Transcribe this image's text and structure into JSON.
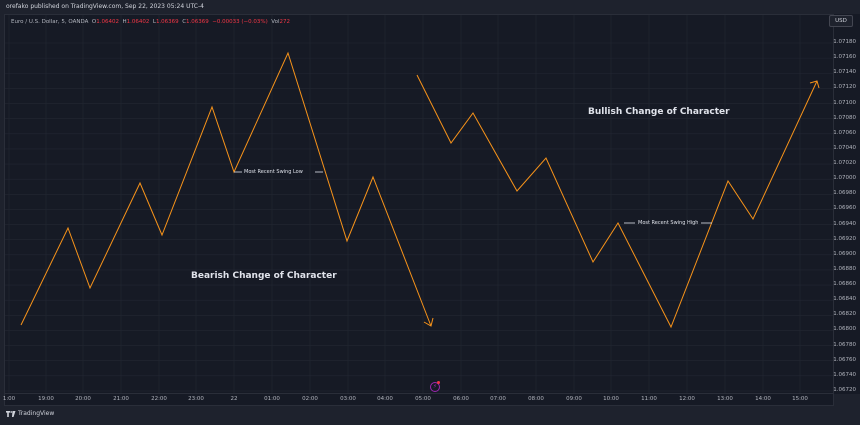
{
  "header": {
    "published_text": "orefako published on TradingView.com, Sep 22, 2023 05:24 UTC-4"
  },
  "legend": {
    "symbol": "Euro / U.S. Dollar, 5, OANDA",
    "open_label": "O",
    "open": "1.06402",
    "high_label": "H",
    "high": "1.06402",
    "low_label": "L",
    "low": "1.06369",
    "close_label": "C",
    "close": "1.06369",
    "change": "−0.00033 (−0.03%)",
    "vol_label": "Vol",
    "vol": "272"
  },
  "price_scale": {
    "currency": "USD",
    "labels": [
      "1.07180",
      "1.07160",
      "1.07140",
      "1.07120",
      "1.07100",
      "1.07080",
      "1.07060",
      "1.07040",
      "1.07020",
      "1.07000",
      "1.06980",
      "1.06960",
      "1.06940",
      "1.06920",
      "1.06900",
      "1.06880",
      "1.06860",
      "1.06840",
      "1.06820",
      "1.06800",
      "1.06780",
      "1.06760",
      "1.06740",
      "1.06720"
    ]
  },
  "time_axis": {
    "labels": [
      "1:00",
      "19:00",
      "20:00",
      "21:00",
      "22:00",
      "23:00",
      "22",
      "01:00",
      "02:00",
      "03:00",
      "04:00",
      "05:00",
      "06:00",
      "07:00",
      "08:00",
      "09:00",
      "10:00",
      "11:00",
      "12:00",
      "13:00",
      "14:00",
      "15:00"
    ]
  },
  "annotations": {
    "bearish_title": "Bearish Change of Character",
    "bullish_title": "Bullish Change of Character",
    "swing_low": "Most Recent Swing Low",
    "swing_high": "Most Recent Swing High"
  },
  "colors": {
    "line": "#f7931a",
    "background": "#161a25",
    "grid": "#232733",
    "text": "#b2b5be",
    "negative": "#f23645"
  },
  "footer": {
    "brand": "TradingView",
    "logo_icon": "tradingview-logo-icon"
  },
  "chart_data": {
    "type": "line",
    "title": "Euro / U.S. Dollar, 5, OANDA",
    "xlabel": "",
    "ylabel": "USD",
    "ylim": [
      1.0671,
      1.0719
    ],
    "grid": true,
    "series": [
      {
        "name": "Bearish Change of Character",
        "points": [
          {
            "x": "18:45",
            "y": 1.06808
          },
          {
            "x": "19:45",
            "y": 1.06937
          },
          {
            "x": "20:05",
            "y": 1.06858
          },
          {
            "x": "21:15",
            "y": 1.06997
          },
          {
            "x": "21:45",
            "y": 1.06928
          },
          {
            "x": "23:05",
            "y": 1.07097
          },
          {
            "x": "23:55",
            "y": 1.07011
          },
          {
            "x": "01:35",
            "y": 1.07168
          },
          {
            "x": "03:00",
            "y": 1.06919
          },
          {
            "x": "03:55",
            "y": 1.07004
          },
          {
            "x": "05:10",
            "y": 1.06807
          }
        ]
      },
      {
        "name": "Bullish Change of Character",
        "points": [
          {
            "x": "05:00",
            "y": 1.07141
          },
          {
            "x": "05:55",
            "y": 1.07051
          },
          {
            "x": "06:20",
            "y": 1.07091
          },
          {
            "x": "07:25",
            "y": 1.06988
          },
          {
            "x": "08:05",
            "y": 1.07031
          },
          {
            "x": "09:25",
            "y": 1.06893
          },
          {
            "x": "10:05",
            "y": 1.06945
          },
          {
            "x": "11:30",
            "y": 1.06807
          },
          {
            "x": "12:55",
            "y": 1.06999
          },
          {
            "x": "13:30",
            "y": 1.06949
          },
          {
            "x": "15:15",
            "y": 1.07132
          }
        ]
      }
    ],
    "annotations": [
      "Most Recent Swing Low",
      "Most Recent Swing High",
      "Bearish Change of Character",
      "Bullish Change of Character"
    ]
  }
}
